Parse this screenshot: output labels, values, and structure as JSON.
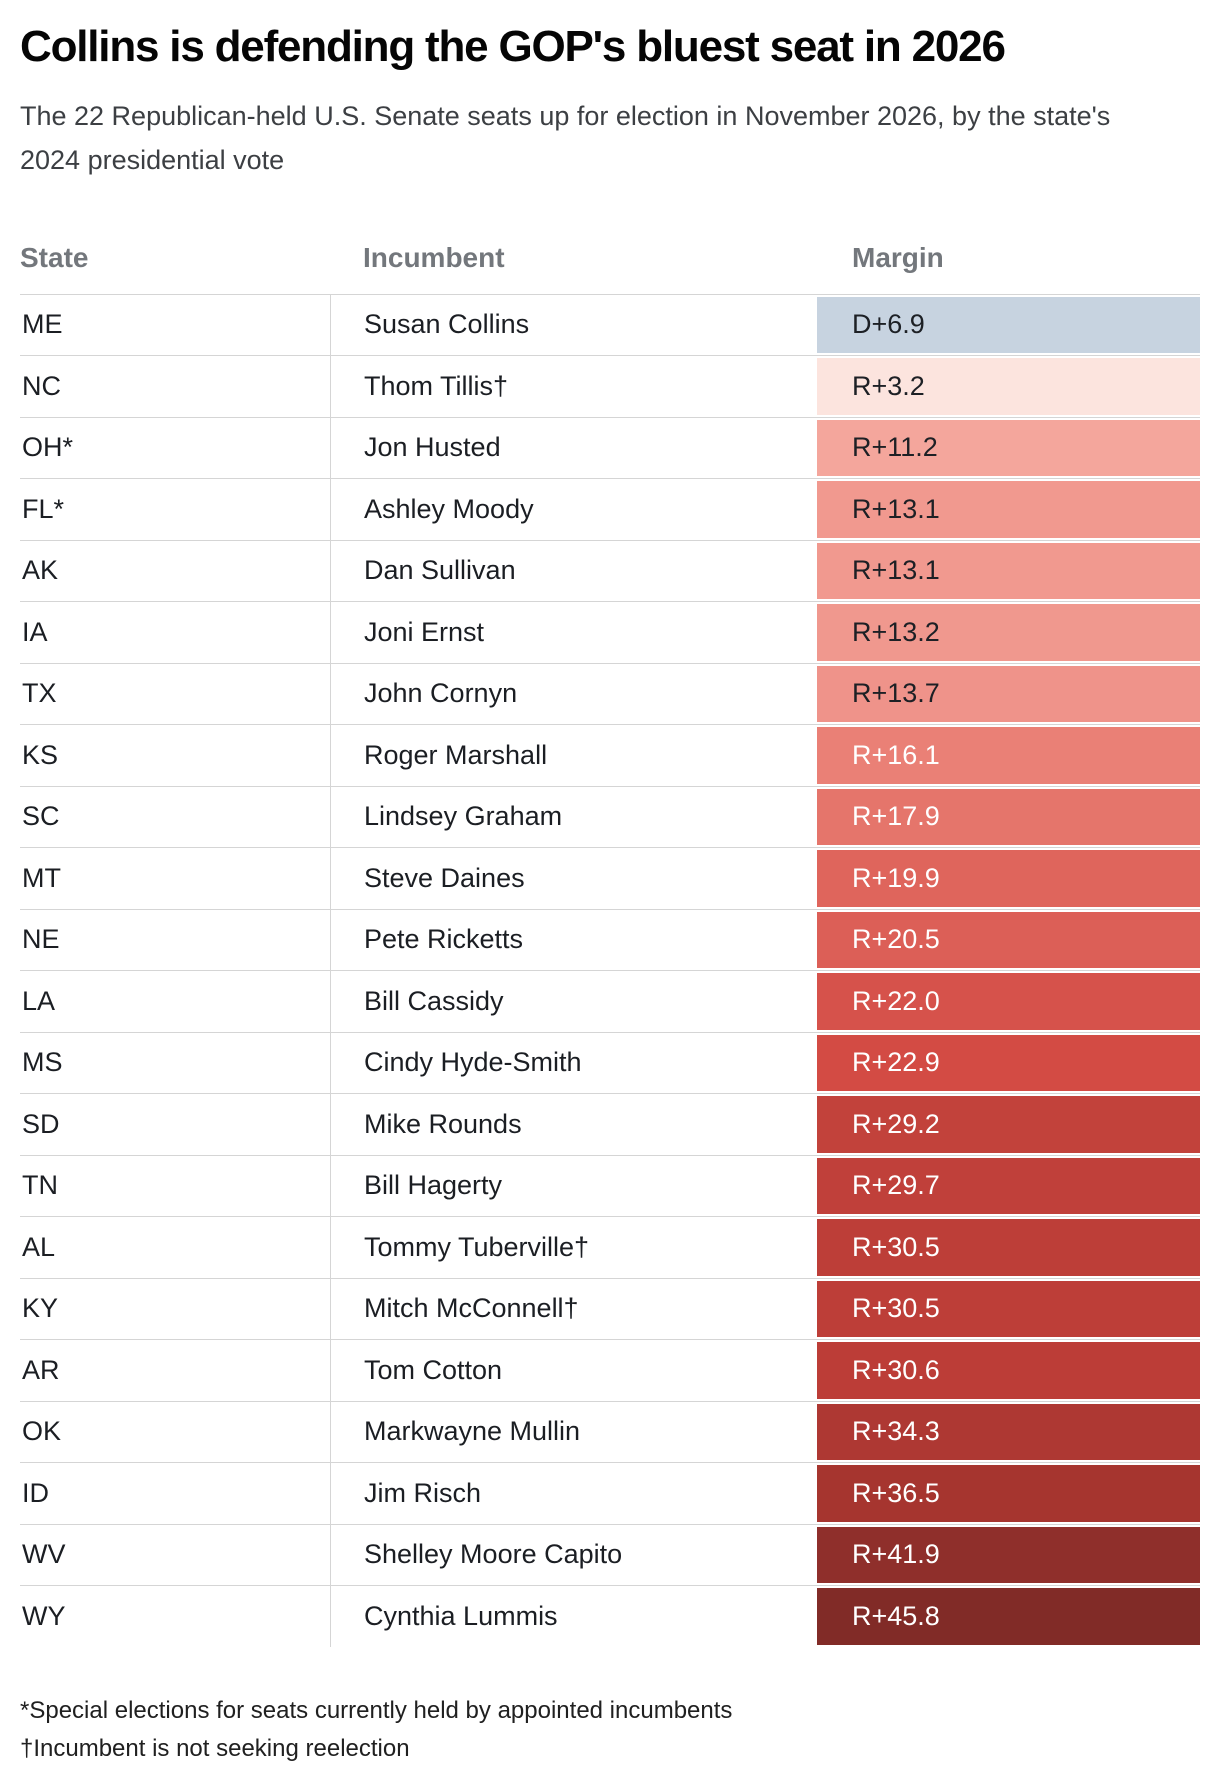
{
  "chart_data": {
    "type": "table",
    "title": "Collins is defending the GOP's bluest seat in 2026",
    "subtitle": "The 22 Republican-held U.S. Senate seats up for election in November 2026, by the state's 2024 presidential vote",
    "columns": [
      "State",
      "Incumbent",
      "Margin"
    ],
    "legend_position": "none",
    "grid": "row-dividers",
    "rows": [
      {
        "state": "ME",
        "incumbent": "Susan Collins",
        "margin_label": "D+6.9",
        "party": "D",
        "margin_value": 6.9,
        "cell_bg": "#c7d3e0",
        "cell_fg": "#1d2025"
      },
      {
        "state": "NC",
        "incumbent": "Thom Tillis†",
        "margin_label": "R+3.2",
        "party": "R",
        "margin_value": 3.2,
        "cell_bg": "#fce4de",
        "cell_fg": "#1d2025"
      },
      {
        "state": "OH*",
        "incumbent": "Jon Husted",
        "margin_label": "R+11.2",
        "party": "R",
        "margin_value": 11.2,
        "cell_bg": "#f4a69c",
        "cell_fg": "#1d2025"
      },
      {
        "state": "FL*",
        "incumbent": "Ashley Moody",
        "margin_label": "R+13.1",
        "party": "R",
        "margin_value": 13.1,
        "cell_bg": "#f1998f",
        "cell_fg": "#1d2025"
      },
      {
        "state": "AK",
        "incumbent": "Dan Sullivan",
        "margin_label": "R+13.1",
        "party": "R",
        "margin_value": 13.1,
        "cell_bg": "#f1998f",
        "cell_fg": "#1d2025"
      },
      {
        "state": "IA",
        "incumbent": "Joni Ernst",
        "margin_label": "R+13.2",
        "party": "R",
        "margin_value": 13.2,
        "cell_bg": "#f0988e",
        "cell_fg": "#1d2025"
      },
      {
        "state": "TX",
        "incumbent": "John Cornyn",
        "margin_label": "R+13.7",
        "party": "R",
        "margin_value": 13.7,
        "cell_bg": "#ef938a",
        "cell_fg": "#1d2025"
      },
      {
        "state": "KS",
        "incumbent": "Roger Marshall",
        "margin_label": "R+16.1",
        "party": "R",
        "margin_value": 16.1,
        "cell_bg": "#ea8076",
        "cell_fg": "#ffffff"
      },
      {
        "state": "SC",
        "incumbent": "Lindsey Graham",
        "margin_label": "R+17.9",
        "party": "R",
        "margin_value": 17.9,
        "cell_bg": "#e5756b",
        "cell_fg": "#ffffff"
      },
      {
        "state": "MT",
        "incumbent": "Steve Daines",
        "margin_label": "R+19.9",
        "party": "R",
        "margin_value": 19.9,
        "cell_bg": "#df655c",
        "cell_fg": "#ffffff"
      },
      {
        "state": "NE",
        "incumbent": "Pete Ricketts",
        "margin_label": "R+20.5",
        "party": "R",
        "margin_value": 20.5,
        "cell_bg": "#dc5f57",
        "cell_fg": "#ffffff"
      },
      {
        "state": "LA",
        "incumbent": "Bill Cassidy",
        "margin_label": "R+22.0",
        "party": "R",
        "margin_value": 22.0,
        "cell_bg": "#d6524b",
        "cell_fg": "#ffffff"
      },
      {
        "state": "MS",
        "incumbent": "Cindy Hyde-Smith",
        "margin_label": "R+22.9",
        "party": "R",
        "margin_value": 22.9,
        "cell_bg": "#d34b44",
        "cell_fg": "#ffffff"
      },
      {
        "state": "SD",
        "incumbent": "Mike Rounds",
        "margin_label": "R+29.2",
        "party": "R",
        "margin_value": 29.2,
        "cell_bg": "#c2423b",
        "cell_fg": "#ffffff"
      },
      {
        "state": "TN",
        "incumbent": "Bill Hagerty",
        "margin_label": "R+29.7",
        "party": "R",
        "margin_value": 29.7,
        "cell_bg": "#c0403a",
        "cell_fg": "#ffffff"
      },
      {
        "state": "AL",
        "incumbent": "Tommy Tuberville†",
        "margin_label": "R+30.5",
        "party": "R",
        "margin_value": 30.5,
        "cell_bg": "#bd3e38",
        "cell_fg": "#ffffff"
      },
      {
        "state": "KY",
        "incumbent": "Mitch McConnell†",
        "margin_label": "R+30.5",
        "party": "R",
        "margin_value": 30.5,
        "cell_bg": "#bd3e38",
        "cell_fg": "#ffffff"
      },
      {
        "state": "AR",
        "incumbent": "Tom Cotton",
        "margin_label": "R+30.6",
        "party": "R",
        "margin_value": 30.6,
        "cell_bg": "#bc3d37",
        "cell_fg": "#ffffff"
      },
      {
        "state": "OK",
        "incumbent": "Markwayne Mullin",
        "margin_label": "R+34.3",
        "party": "R",
        "margin_value": 34.3,
        "cell_bg": "#ae3833",
        "cell_fg": "#ffffff"
      },
      {
        "state": "ID",
        "incumbent": "Jim Risch",
        "margin_label": "R+36.5",
        "party": "R",
        "margin_value": 36.5,
        "cell_bg": "#a6352f",
        "cell_fg": "#ffffff"
      },
      {
        "state": "WV",
        "incumbent": "Shelley Moore Capito",
        "margin_label": "R+41.9",
        "party": "R",
        "margin_value": 41.9,
        "cell_bg": "#8f2f2b",
        "cell_fg": "#ffffff"
      },
      {
        "state": "WY",
        "incumbent": "Cynthia Lummis",
        "margin_label": "R+45.8",
        "party": "R",
        "margin_value": 45.8,
        "cell_bg": "#812b27",
        "cell_fg": "#ffffff"
      }
    ],
    "footnotes": [
      "*Special elections for seats currently held by appointed incumbents",
      "†Incumbent is not seeking reelection"
    ],
    "colors": {
      "dem_cell": "#c7d3e0",
      "rep_light_cell": "#fce4de",
      "rep_dark_cell": "#812b27",
      "row_divider": "#d5d5d5",
      "header_text": "#73777c"
    }
  }
}
